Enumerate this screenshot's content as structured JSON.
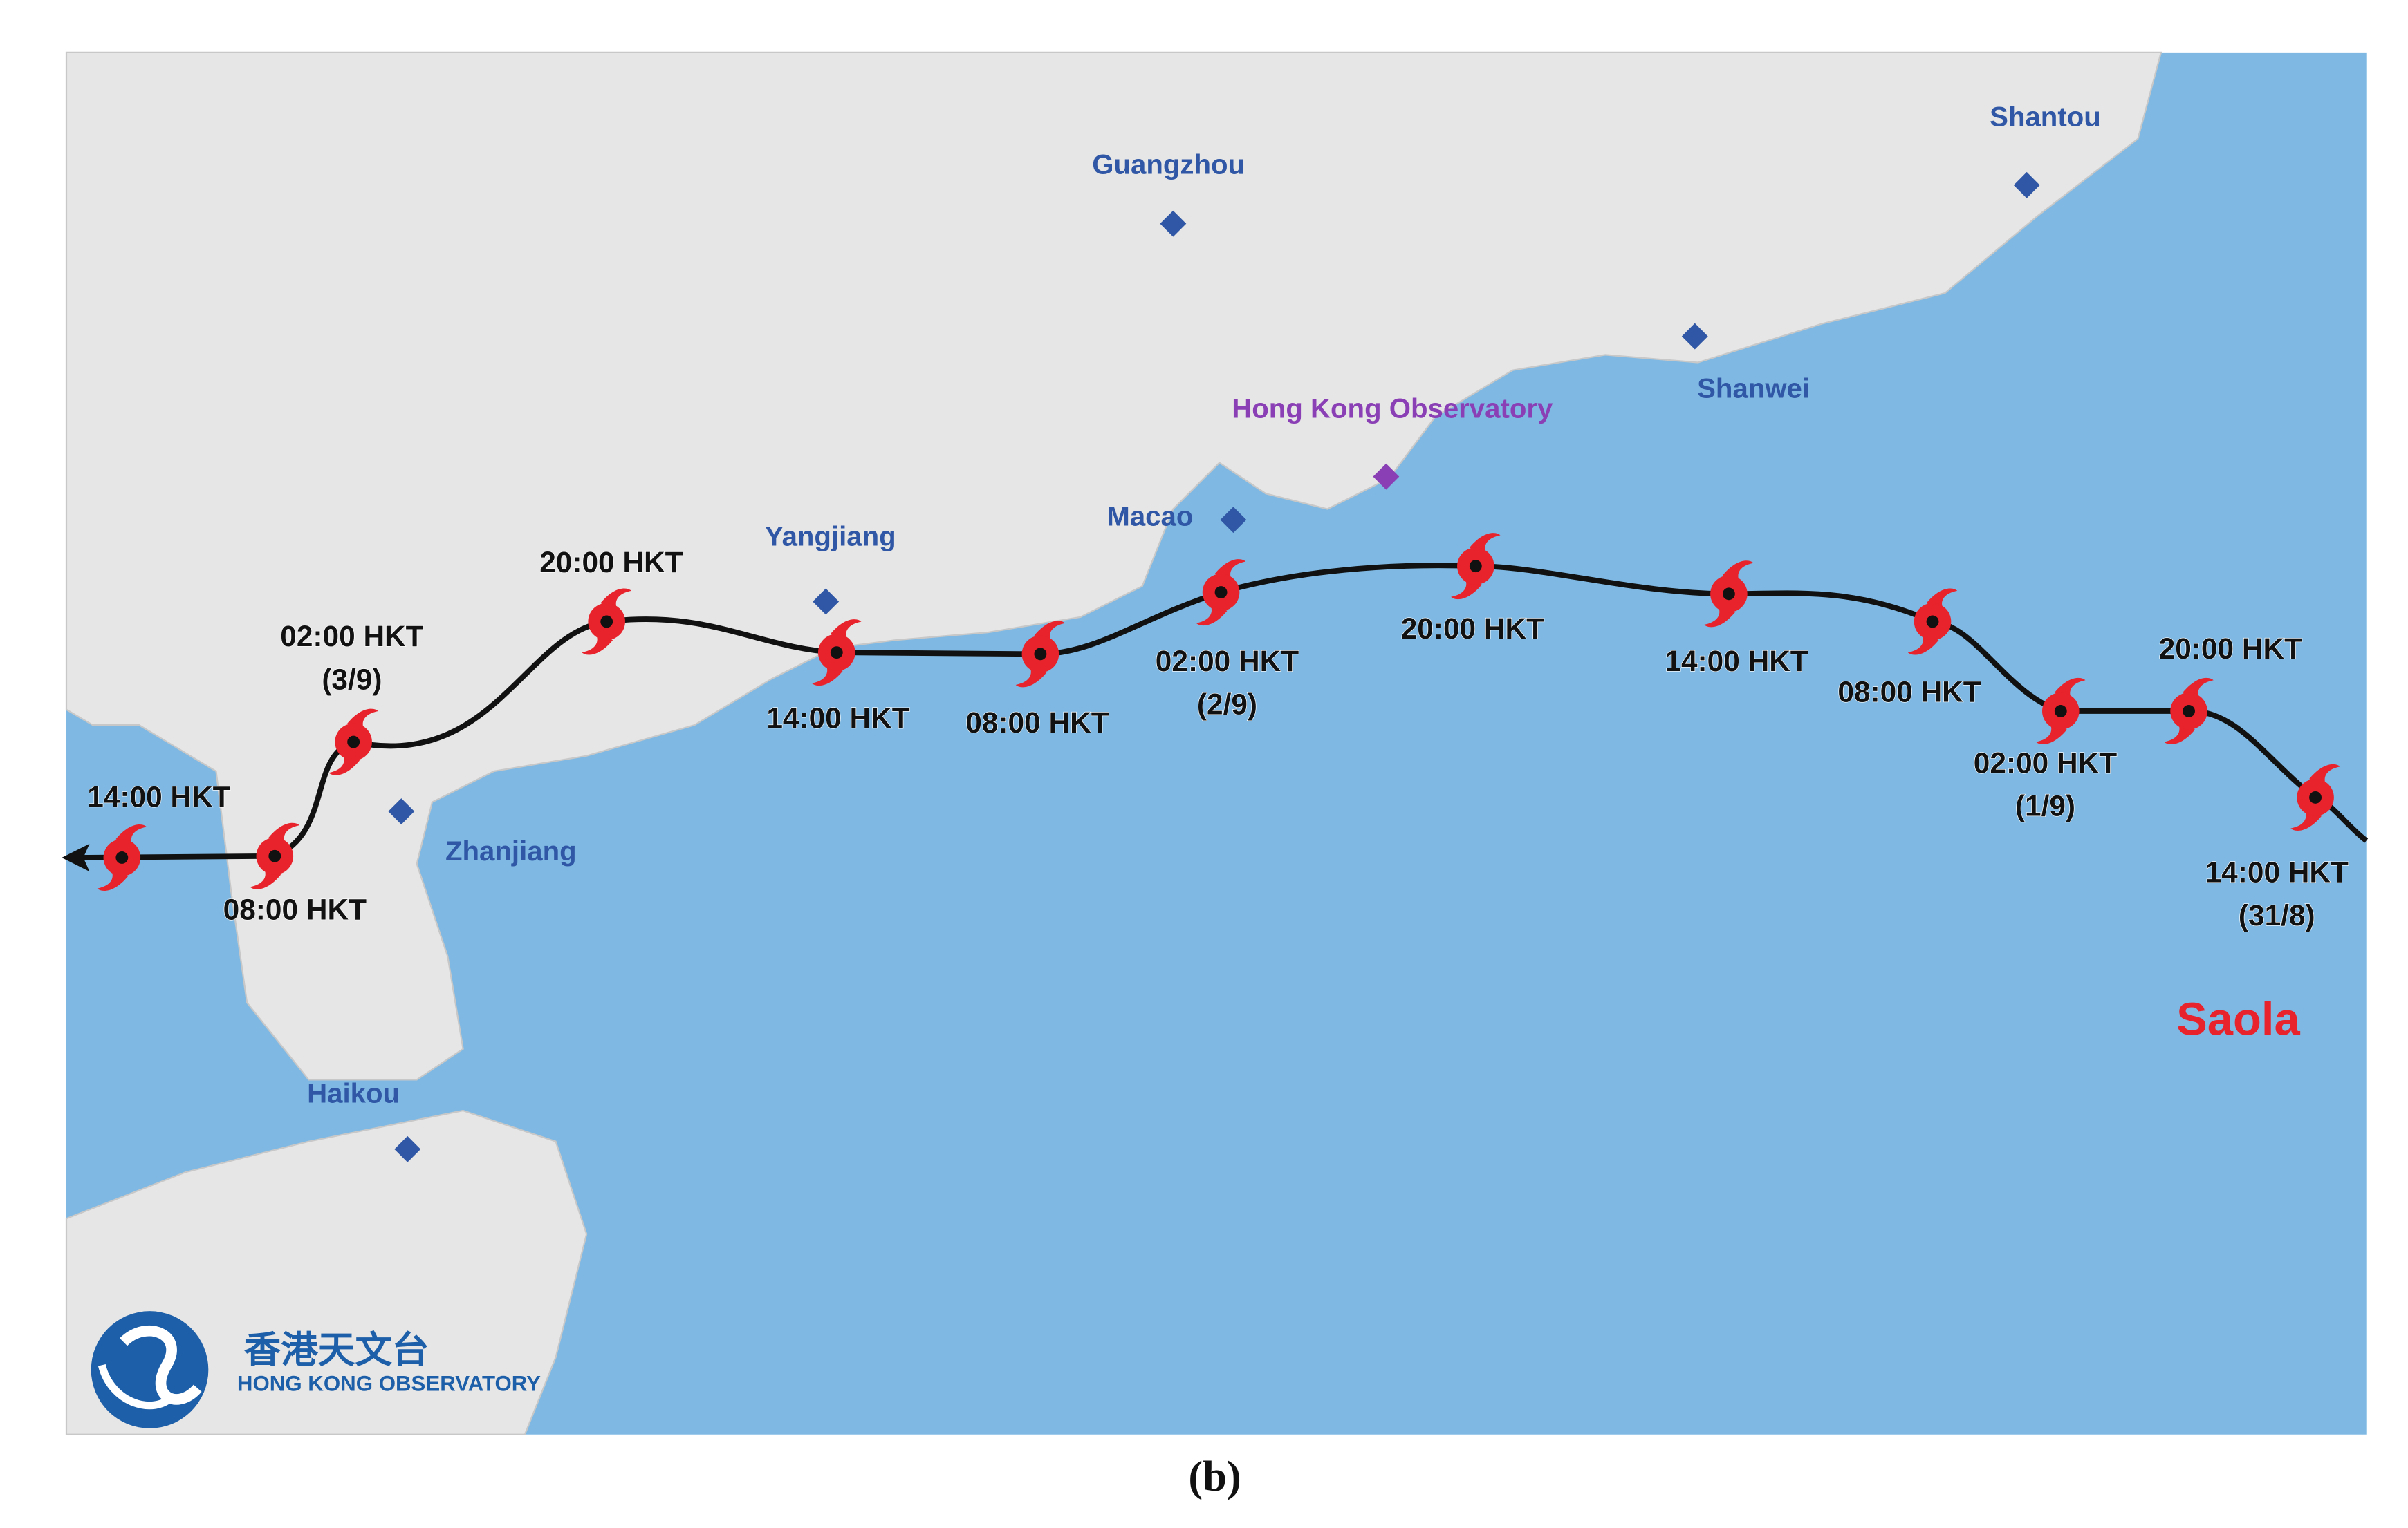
{
  "map": {
    "storm_name": "Saola",
    "track": [
      {
        "time": "14:00 HKT",
        "date": "(31/8)"
      },
      {
        "time": "20:00 HKT"
      },
      {
        "time": "02:00 HKT",
        "date": "(1/9)"
      },
      {
        "time": "08:00 HKT"
      },
      {
        "time": "14:00 HKT"
      },
      {
        "time": "20:00 HKT"
      },
      {
        "time": "02:00 HKT",
        "date": "(2/9)"
      },
      {
        "time": "08:00 HKT"
      },
      {
        "time": "14:00 HKT"
      },
      {
        "time": "20:00 HKT"
      },
      {
        "time": "02:00 HKT",
        "date": "(3/9)"
      },
      {
        "time": "08:00 HKT"
      },
      {
        "time": "14:00 HKT"
      }
    ],
    "cities": [
      {
        "name": "Guangzhou"
      },
      {
        "name": "Shantou"
      },
      {
        "name": "Shanwei"
      },
      {
        "name": "Hong Kong Observatory"
      },
      {
        "name": "Macao"
      },
      {
        "name": "Yangjiang"
      },
      {
        "name": "Zhanjiang"
      },
      {
        "name": "Haikou"
      }
    ],
    "logo": {
      "chinese": "香港天文台",
      "english": "HONG KONG OBSERVATORY"
    }
  },
  "caption": "(b)"
}
